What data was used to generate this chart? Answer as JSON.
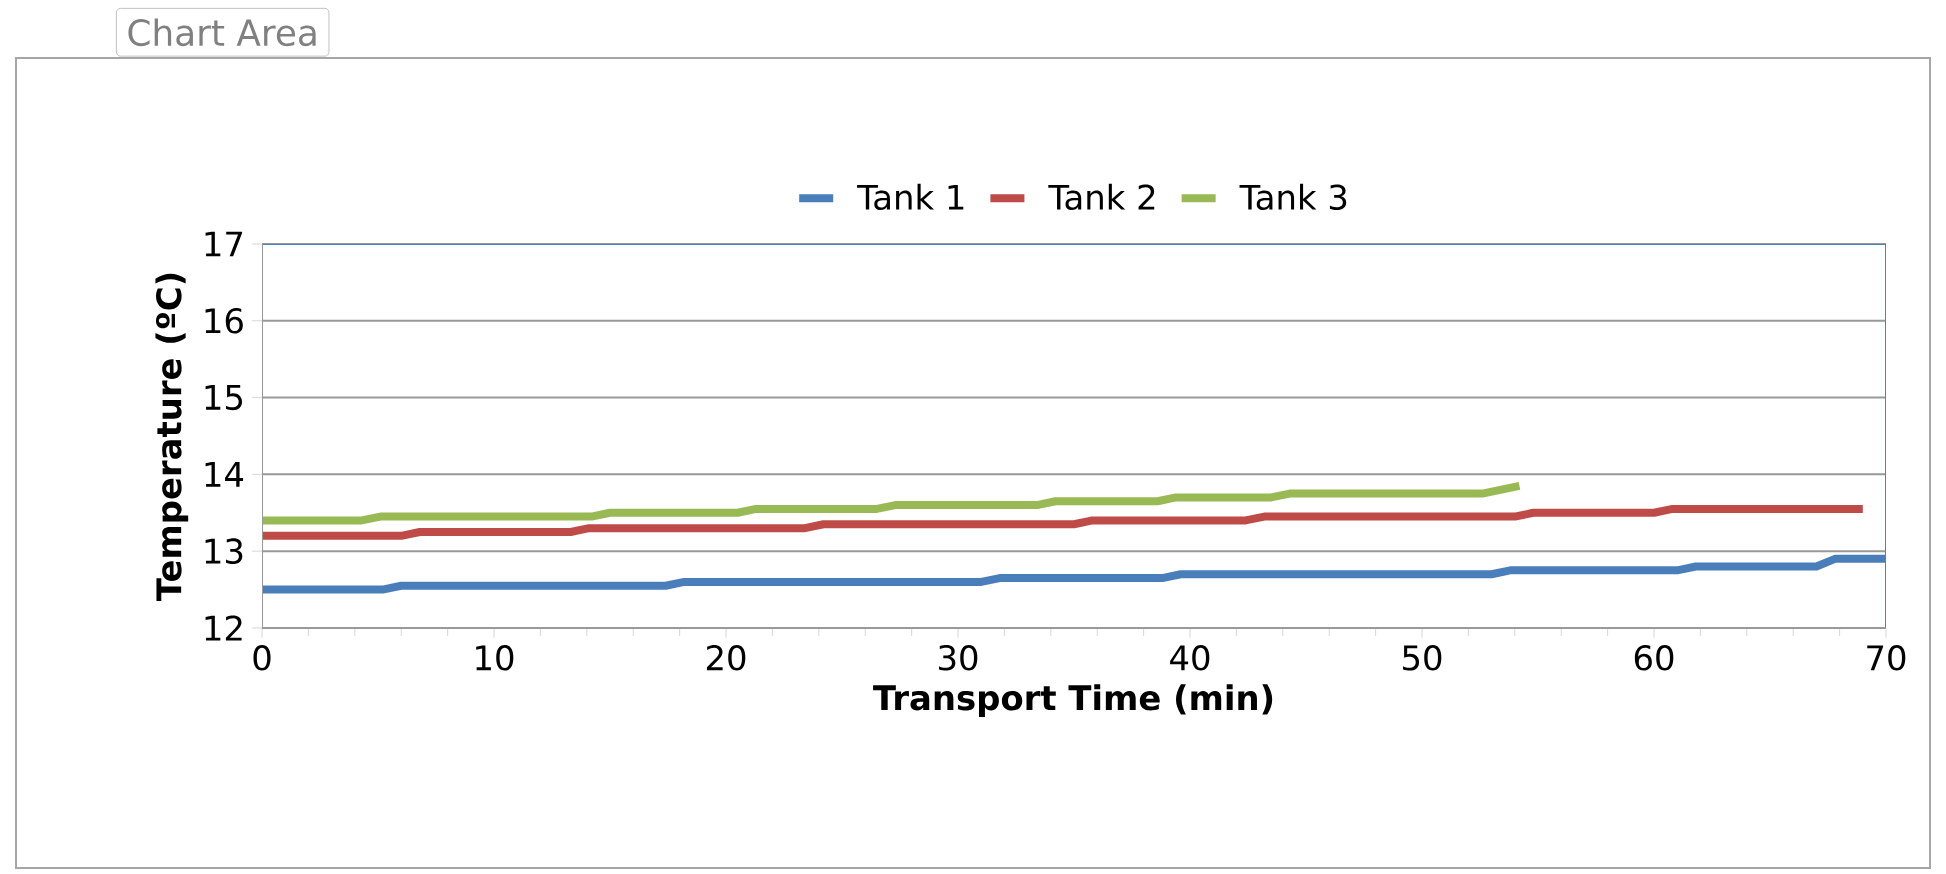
{
  "chart_data": {
    "type": "line",
    "xlabel": "Transport Time (min)",
    "ylabel": "Temperature (ºC)",
    "annotations": [
      "Chart Area"
    ],
    "xlim": [
      0,
      70
    ],
    "ylim": [
      12,
      17
    ],
    "xticks": [
      0,
      10,
      20,
      30,
      40,
      50,
      60,
      70
    ],
    "yticks": [
      12,
      13,
      14,
      15,
      16,
      17
    ],
    "grid": "y",
    "legend": "top",
    "line_style": "solid",
    "marker": "none",
    "series": [
      {
        "name": "Tank 1",
        "color": "#4a7ebb",
        "x": [
          0,
          5.2,
          6,
          17.4,
          18.2,
          31,
          31.8,
          38.8,
          39.6,
          53,
          53.8,
          61,
          61.8,
          67,
          67.8,
          70
        ],
        "values": [
          12.5,
          12.5,
          12.55,
          12.55,
          12.6,
          12.6,
          12.65,
          12.65,
          12.7,
          12.7,
          12.75,
          12.75,
          12.8,
          12.8,
          12.9,
          12.9
        ]
      },
      {
        "name": "Tank 2",
        "color": "#be4b48",
        "x": [
          0,
          6,
          6.8,
          13.3,
          14.1,
          23.4,
          24.2,
          35,
          35.8,
          42.4,
          43.2,
          54,
          54.8,
          60,
          60.8,
          69
        ],
        "values": [
          13.2,
          13.2,
          13.25,
          13.25,
          13.3,
          13.3,
          13.35,
          13.35,
          13.4,
          13.4,
          13.45,
          13.45,
          13.5,
          13.5,
          13.55,
          13.55
        ]
      },
      {
        "name": "Tank 3",
        "color": "#98b954",
        "x": [
          0,
          4.3,
          5.1,
          14.2,
          15,
          20.5,
          21.3,
          26.5,
          27.3,
          33.4,
          34.2,
          38.6,
          39.4,
          43.5,
          44.3,
          52.6,
          54.2
        ],
        "values": [
          13.4,
          13.4,
          13.45,
          13.45,
          13.5,
          13.5,
          13.55,
          13.55,
          13.6,
          13.6,
          13.65,
          13.65,
          13.7,
          13.7,
          13.75,
          13.75,
          13.85
        ]
      }
    ]
  }
}
